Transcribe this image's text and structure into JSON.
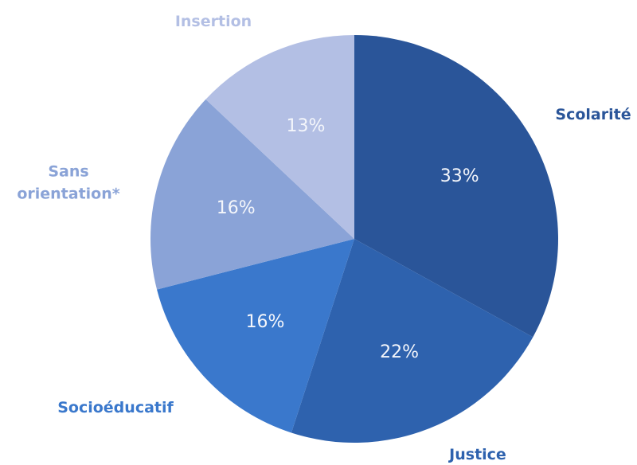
{
  "chart_data": {
    "type": "pie",
    "categories": [
      "Scolarité",
      "Justice",
      "Socioéducatif",
      "Sans orientation*",
      "Insertion"
    ],
    "values": [
      33,
      22,
      16,
      16,
      13
    ],
    "value_labels": [
      "33%",
      "22%",
      "16%",
      "16%",
      "13%"
    ],
    "colors": [
      "#2a5599",
      "#2e62ae",
      "#3a78cc",
      "#8aa3d7",
      "#b3bfe4"
    ],
    "start_angle": 0,
    "direction": "clockwise"
  }
}
